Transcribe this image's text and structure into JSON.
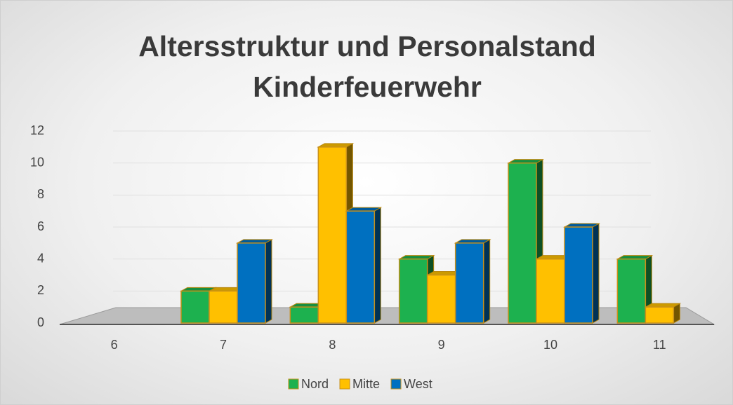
{
  "chart_data": {
    "type": "bar3d",
    "title": "Altersstruktur und Personalstand Kinderfeuerwehr",
    "categories": [
      "6",
      "7",
      "8",
      "9",
      "10",
      "11"
    ],
    "series": [
      {
        "name": "Nord",
        "color": "#1db14f",
        "values": [
          0,
          2,
          1,
          4,
          10,
          4
        ]
      },
      {
        "name": "Mitte",
        "color": "#ffc000",
        "values": [
          0,
          2,
          11,
          3,
          4,
          1
        ]
      },
      {
        "name": "West",
        "color": "#0070c0",
        "values": [
          0,
          5,
          7,
          5,
          6,
          0
        ]
      }
    ],
    "ylim": [
      0,
      12
    ],
    "yticks": [
      0,
      2,
      4,
      6,
      8,
      10,
      12
    ],
    "grid": true,
    "legend": "bottom"
  }
}
